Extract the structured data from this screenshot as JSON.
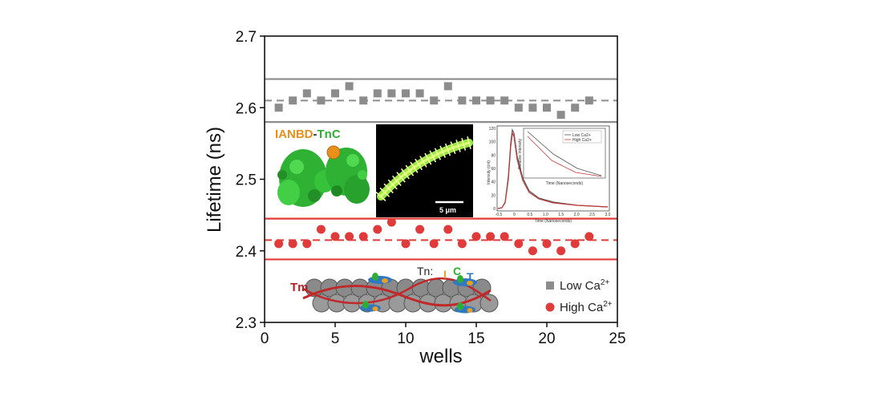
{
  "chart_data": {
    "type": "scatter",
    "xlabel": "wells",
    "ylabel": "Lifetime (ns)",
    "xlim": [
      0,
      25
    ],
    "ylim": [
      2.3,
      2.7
    ],
    "xticks": [
      0,
      5,
      10,
      15,
      20,
      25
    ],
    "yticks": [
      2.3,
      2.4,
      2.5,
      2.6,
      2.7
    ],
    "grid": false,
    "legend_position": "bottom-right",
    "series": [
      {
        "name": "Low Ca2+",
        "name_base": "Low Ca",
        "name_sup": "2+",
        "marker": "square",
        "color": "#8c8c8c",
        "mean": 2.61,
        "band": [
          2.58,
          2.64
        ],
        "x": [
          1,
          2,
          3,
          4,
          5,
          6,
          7,
          8,
          9,
          10,
          11,
          12,
          13,
          14,
          15,
          16,
          17,
          18,
          19,
          20,
          21,
          22,
          23
        ],
        "y": [
          2.6,
          2.61,
          2.62,
          2.61,
          2.62,
          2.63,
          2.61,
          2.62,
          2.62,
          2.62,
          2.62,
          2.61,
          2.63,
          2.61,
          2.61,
          2.61,
          2.61,
          2.6,
          2.6,
          2.6,
          2.59,
          2.6,
          2.61
        ]
      },
      {
        "name": "High Ca2+",
        "name_base": "High Ca",
        "name_sup": "2+",
        "marker": "circle",
        "color": "#e03a3a",
        "mean": 2.415,
        "band": [
          2.388,
          2.445
        ],
        "x": [
          1,
          2,
          3,
          4,
          5,
          6,
          7,
          8,
          9,
          10,
          11,
          12,
          13,
          14,
          15,
          16,
          17,
          18,
          19,
          20,
          21,
          22,
          23
        ],
        "y": [
          2.41,
          2.41,
          2.41,
          2.43,
          2.42,
          2.42,
          2.42,
          2.43,
          2.44,
          2.41,
          2.43,
          2.41,
          2.43,
          2.41,
          2.42,
          2.42,
          2.42,
          2.41,
          2.4,
          2.41,
          2.4,
          2.41,
          2.42
        ]
      }
    ],
    "insets": {
      "structure_label_part1": "IANBD",
      "structure_label_sep": "-",
      "structure_label_part2": "TnC",
      "micrograph_scale": "5 μm",
      "decay_ylabel": "Intensity (cnt)",
      "decay_xlabel": "Time (Nanoseconds)",
      "decay_yticks": [
        "120",
        "100",
        "80",
        "60",
        "40",
        "20",
        "0"
      ],
      "decay_xticks": [
        "-0.5",
        "0",
        "0.5",
        "1.0",
        "1.5",
        "2.0",
        "2.5",
        "3.0"
      ],
      "decay_inner_legend": [
        "Low Ca2+",
        "High Ca2+"
      ],
      "decay_inner_xlabel": "Time (Nanoseconds)",
      "decay_inner_ylabel": "Relative Intensity",
      "filament_tm_label": "Tm",
      "filament_tn_label": "Tn:",
      "tn_i": "I",
      "tn_c": "C",
      "tn_t": "T"
    },
    "colors": {
      "low_ca": "#8c8c8c",
      "high_ca": "#e03a3a",
      "tnc_green": "#36c23a",
      "ianbd_orange": "#e8901a",
      "tm_red": "#c0282a",
      "tni_orange": "#e8a020",
      "tnt_blue": "#2f78c4"
    }
  }
}
